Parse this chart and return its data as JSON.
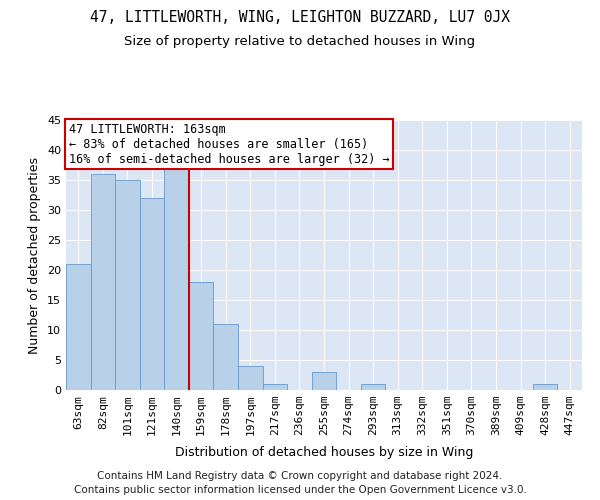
{
  "title": "47, LITTLEWORTH, WING, LEIGHTON BUZZARD, LU7 0JX",
  "subtitle": "Size of property relative to detached houses in Wing",
  "xlabel": "Distribution of detached houses by size in Wing",
  "ylabel": "Number of detached properties",
  "categories": [
    "63sqm",
    "82sqm",
    "101sqm",
    "121sqm",
    "140sqm",
    "159sqm",
    "178sqm",
    "197sqm",
    "217sqm",
    "236sqm",
    "255sqm",
    "274sqm",
    "293sqm",
    "313sqm",
    "332sqm",
    "351sqm",
    "370sqm",
    "389sqm",
    "409sqm",
    "428sqm",
    "447sqm"
  ],
  "values": [
    21,
    36,
    35,
    32,
    37,
    18,
    11,
    4,
    1,
    0,
    3,
    0,
    1,
    0,
    0,
    0,
    0,
    0,
    0,
    1,
    0
  ],
  "bar_color": "#b8d0e8",
  "bar_edge_color": "#6699cc",
  "background_color": "#dce6f4",
  "grid_color": "#ffffff",
  "vline_x_index": 5,
  "vline_color": "#cc0000",
  "annotation_title": "47 LITTLEWORTH: 163sqm",
  "annotation_line1": "← 83% of detached houses are smaller (165)",
  "annotation_line2": "16% of semi-detached houses are larger (32) →",
  "annotation_box_color": "#ffffff",
  "annotation_box_edge_color": "#cc0000",
  "footer1": "Contains HM Land Registry data © Crown copyright and database right 2024.",
  "footer2": "Contains public sector information licensed under the Open Government Licence v3.0.",
  "ylim": [
    0,
    45
  ],
  "yticks": [
    0,
    5,
    10,
    15,
    20,
    25,
    30,
    35,
    40,
    45
  ],
  "title_fontsize": 10.5,
  "subtitle_fontsize": 9.5,
  "axis_label_fontsize": 9,
  "tick_fontsize": 8,
  "annotation_fontsize": 8.5,
  "footer_fontsize": 7.5
}
